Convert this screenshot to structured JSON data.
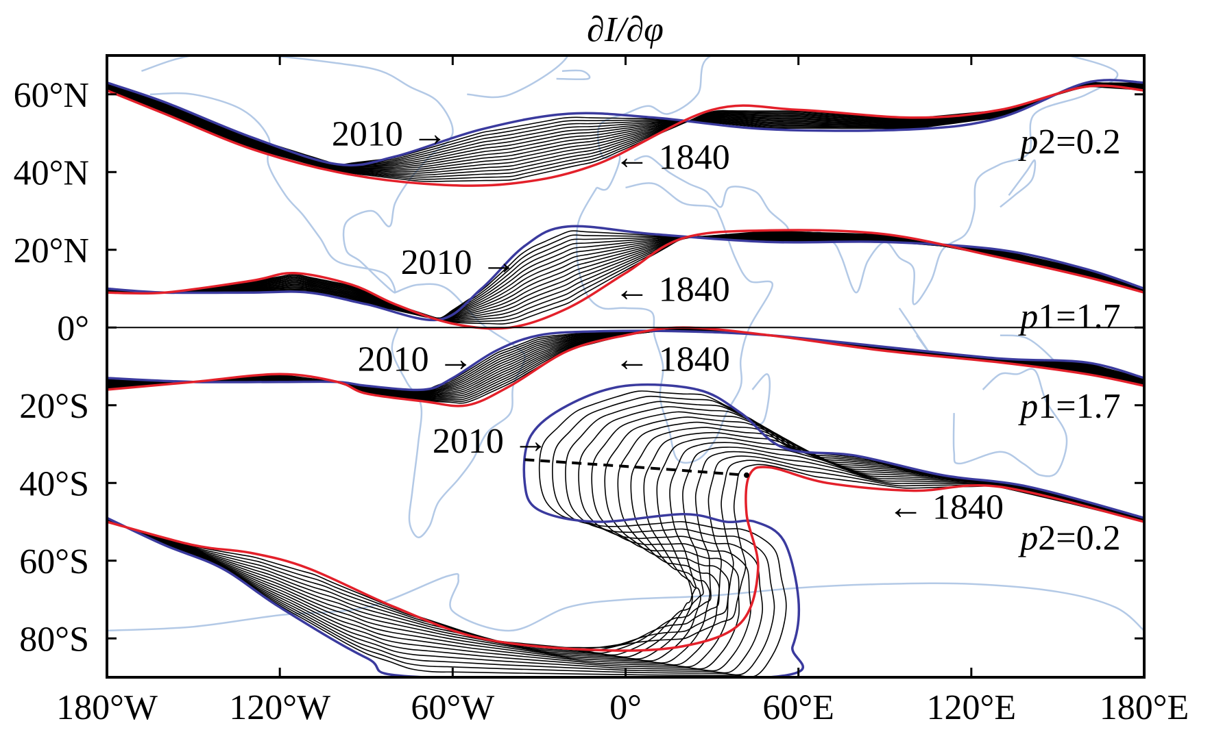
{
  "chart_data": {
    "type": "line",
    "title": "∂I/∂φ",
    "xlabel": "",
    "ylabel": "",
    "xlim": [
      -180,
      180
    ],
    "ylim": [
      -90,
      70
    ],
    "grid": false,
    "x_ticks": [
      {
        "value": -180,
        "label": "180°W"
      },
      {
        "value": -120,
        "label": "120°W"
      },
      {
        "value": -60,
        "label": "60°W"
      },
      {
        "value": 0,
        "label": "0°"
      },
      {
        "value": 60,
        "label": "60°E"
      },
      {
        "value": 120,
        "label": "120°E"
      },
      {
        "value": 180,
        "label": "180°E"
      }
    ],
    "y_ticks": [
      {
        "value": 60,
        "label": "60°N"
      },
      {
        "value": 40,
        "label": "40°N"
      },
      {
        "value": 20,
        "label": "20°N"
      },
      {
        "value": 0,
        "label": "0°"
      },
      {
        "value": -20,
        "label": "20°S"
      },
      {
        "value": -40,
        "label": "40°S"
      },
      {
        "value": -60,
        "label": "60°S"
      },
      {
        "value": -80,
        "label": "80°S"
      }
    ],
    "colors": {
      "epoch_2010": "#3a3a9e",
      "epoch_1840": "#e3202a",
      "intermediate": "#000000",
      "coastline": "#b3c9e6"
    },
    "contours": [
      {
        "label": "p2=0.2",
        "label_pos": [
          137,
          48
        ],
        "p2010": [
          [
            -180,
            63
          ],
          [
            -160,
            58
          ],
          [
            -130,
            49
          ],
          [
            -100,
            42
          ],
          [
            -80,
            44
          ],
          [
            -50,
            51
          ],
          [
            -20,
            55
          ],
          [
            10,
            54
          ],
          [
            50,
            51
          ],
          [
            100,
            51
          ],
          [
            130,
            54
          ],
          [
            160,
            63
          ],
          [
            180,
            63
          ]
        ],
        "p1840": [
          [
            -180,
            61
          ],
          [
            -160,
            55
          ],
          [
            -130,
            46
          ],
          [
            -100,
            40
          ],
          [
            -70,
            37
          ],
          [
            -40,
            37
          ],
          [
            -10,
            42
          ],
          [
            30,
            56
          ],
          [
            60,
            56
          ],
          [
            100,
            54
          ],
          [
            130,
            56
          ],
          [
            160,
            62
          ],
          [
            180,
            61
          ]
        ]
      },
      {
        "label": "p1=1.7",
        "label_pos": [
          137,
          3
        ],
        "p2010": [
          [
            -180,
            10
          ],
          [
            -160,
            9
          ],
          [
            -130,
            9
          ],
          [
            -110,
            9
          ],
          [
            -90,
            6
          ],
          [
            -65,
            2
          ],
          [
            -50,
            10
          ],
          [
            -35,
            21
          ],
          [
            -20,
            26
          ],
          [
            10,
            24
          ],
          [
            50,
            22
          ],
          [
            90,
            22
          ],
          [
            130,
            20
          ],
          [
            160,
            15
          ],
          [
            180,
            10
          ]
        ],
        "p1840": [
          [
            -180,
            9
          ],
          [
            -160,
            9
          ],
          [
            -130,
            12
          ],
          [
            -115,
            14
          ],
          [
            -95,
            11
          ],
          [
            -80,
            6
          ],
          [
            -60,
            1
          ],
          [
            -40,
            0
          ],
          [
            -20,
            5
          ],
          [
            0,
            14
          ],
          [
            20,
            23
          ],
          [
            50,
            25
          ],
          [
            90,
            24
          ],
          [
            130,
            18
          ],
          [
            160,
            13
          ],
          [
            180,
            9
          ]
        ]
      },
      {
        "label": "p1=1.7",
        "label_pos": [
          137,
          -20
        ],
        "p2010": [
          [
            -180,
            -13
          ],
          [
            -150,
            -14
          ],
          [
            -120,
            -14
          ],
          [
            -100,
            -14
          ],
          [
            -90,
            -15
          ],
          [
            -70,
            -16
          ],
          [
            -60,
            -13
          ],
          [
            -45,
            -6
          ],
          [
            -30,
            -2
          ],
          [
            -10,
            -1
          ],
          [
            20,
            -1
          ],
          [
            50,
            -2
          ],
          [
            90,
            -5
          ],
          [
            130,
            -8
          ],
          [
            160,
            -9
          ],
          [
            180,
            -13
          ]
        ],
        "p1840": [
          [
            -180,
            -16
          ],
          [
            -150,
            -14
          ],
          [
            -120,
            -12
          ],
          [
            -100,
            -14
          ],
          [
            -90,
            -17
          ],
          [
            -70,
            -19
          ],
          [
            -55,
            -20
          ],
          [
            -40,
            -15
          ],
          [
            -20,
            -6
          ],
          [
            0,
            -2
          ],
          [
            20,
            0
          ],
          [
            50,
            -2
          ],
          [
            90,
            -6
          ],
          [
            130,
            -9
          ],
          [
            160,
            -12
          ],
          [
            180,
            -15
          ]
        ]
      },
      {
        "label": "p2=0.2",
        "label_pos": [
          137,
          -54
        ],
        "p2010": [
          [
            -180,
            -49
          ],
          [
            -160,
            -56
          ],
          [
            -140,
            -62
          ],
          [
            -120,
            -72
          ],
          [
            -90,
            -85
          ],
          [
            -70,
            -90
          ],
          [
            50,
            -90
          ],
          [
            58,
            -82
          ],
          [
            60,
            -70
          ],
          [
            55,
            -55
          ],
          [
            45,
            -50
          ],
          [
            35,
            -50
          ],
          [
            20,
            -48
          ],
          [
            -10,
            -50
          ],
          [
            -30,
            -47
          ],
          [
            -35,
            -40
          ],
          [
            -33,
            -28
          ],
          [
            -20,
            -20
          ],
          [
            0,
            -15
          ],
          [
            25,
            -16
          ],
          [
            40,
            -22
          ],
          [
            55,
            -31
          ],
          [
            80,
            -33
          ],
          [
            110,
            -38
          ],
          [
            140,
            -41
          ],
          [
            180,
            -49
          ]
        ],
        "p1840": [
          [
            -180,
            -50
          ],
          [
            -150,
            -56
          ],
          [
            -130,
            -58
          ],
          [
            -110,
            -62
          ],
          [
            -80,
            -72
          ],
          [
            -50,
            -80
          ],
          [
            -10,
            -83
          ],
          [
            20,
            -82
          ],
          [
            40,
            -76
          ],
          [
            46,
            -62
          ],
          [
            42,
            -48
          ],
          [
            43,
            -38
          ],
          [
            50,
            -36
          ],
          [
            70,
            -40
          ],
          [
            100,
            -42
          ],
          [
            130,
            -41
          ],
          [
            180,
            -50
          ]
        ]
      }
    ],
    "year_labels": [
      {
        "text": "2010",
        "arrow": "right",
        "anchor": [
          -102,
          50
        ]
      },
      {
        "text": "1840",
        "arrow": "left",
        "anchor": [
          -4,
          44
        ]
      },
      {
        "text": "2010",
        "arrow": "right",
        "anchor": [
          -78,
          17
        ]
      },
      {
        "text": "1840",
        "arrow": "left",
        "anchor": [
          -4,
          10
        ]
      },
      {
        "text": "2010",
        "arrow": "right",
        "anchor": [
          -93,
          -8
        ]
      },
      {
        "text": "1840",
        "arrow": "left",
        "anchor": [
          -4,
          -8
        ]
      },
      {
        "text": "2010",
        "arrow": "right",
        "anchor": [
          -67,
          -29
        ]
      },
      {
        "text": "1840",
        "arrow": "left",
        "anchor": [
          91,
          -46
        ]
      }
    ],
    "equator_line": {
      "y": 0
    },
    "drift_path": [
      [
        -35,
        -34
      ],
      [
        5,
        -36
      ],
      [
        42,
        -38
      ]
    ]
  }
}
